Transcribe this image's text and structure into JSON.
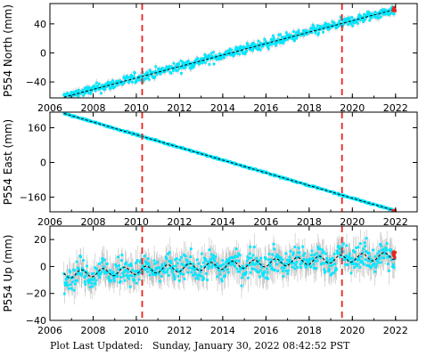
{
  "footer": {
    "label": "Plot Last Updated:",
    "timestamp": "Sunday, January 30, 2022 08:42:52 PST"
  },
  "colors": {
    "data": "#00e6ff",
    "errorbar": "#b0b0b0",
    "model": "#000000",
    "event": "#e8231f",
    "latest": "#e8231f"
  },
  "event_lines_year": [
    2010.27,
    2019.52
  ],
  "chart_data": [
    {
      "type": "scatter",
      "ylabel": "P554 North (mm)",
      "xlim": [
        2006,
        2023
      ],
      "ylim": [
        -62,
        68
      ],
      "xticks": [
        2006,
        2008,
        2010,
        2012,
        2014,
        2016,
        2018,
        2020,
        2022
      ],
      "yticks": [
        -40,
        0,
        40
      ],
      "x_start": 2006.65,
      "x_end": 2021.98,
      "trend": {
        "start": -61,
        "end": 60
      },
      "scatter_mm": 5,
      "errorbar_mm": 4,
      "series": [
        {
          "name": "",
          "x": [
            2006.65,
            2010.0,
            2014.0,
            2018.0,
            2021.98
          ],
          "y": [
            -61,
            -35,
            -3,
            28,
            60
          ]
        }
      ],
      "xtick_labels": [
        "2006",
        "2008",
        "2010",
        "2012",
        "2014",
        "2016",
        "2018",
        "2020",
        "2022"
      ],
      "ytick_labels": [
        "−40",
        "0",
        "40"
      ]
    },
    {
      "type": "scatter",
      "ylabel": "P554 East (mm)",
      "xlim": [
        2006,
        2023
      ],
      "ylim": [
        -228,
        232
      ],
      "xticks": [
        2006,
        2008,
        2010,
        2012,
        2014,
        2016,
        2018,
        2020,
        2022
      ],
      "yticks": [
        -160,
        0,
        160
      ],
      "x_start": 2006.65,
      "x_end": 2021.98,
      "trend": {
        "start": 226,
        "end": -223
      },
      "scatter_mm": 3,
      "errorbar_mm": 3,
      "series": [
        {
          "name": "",
          "x": [
            2006.65,
            2010.0,
            2014.0,
            2018.0,
            2021.98
          ],
          "y": [
            226,
            128,
            10,
            -107,
            -223
          ]
        }
      ],
      "xtick_labels": [
        "2006",
        "2008",
        "2010",
        "2012",
        "2014",
        "2016",
        "2018",
        "2020",
        "2022"
      ],
      "ytick_labels": [
        "−160",
        "0",
        "160"
      ]
    },
    {
      "type": "scatter",
      "ylabel": "P554 Up (mm)",
      "xlim": [
        2006,
        2023
      ],
      "ylim": [
        -40,
        30
      ],
      "xticks": [
        2006,
        2008,
        2010,
        2012,
        2014,
        2016,
        2018,
        2020,
        2022
      ],
      "yticks": [
        -40,
        -20,
        0,
        20
      ],
      "x_start": 2006.65,
      "x_end": 2021.98,
      "trend": {
        "start": -6,
        "end": 8
      },
      "scatter_mm": 7,
      "errorbar_mm": 8,
      "seasonal_mm": 3,
      "series": [
        {
          "name": "",
          "x": [
            2006.65,
            2010.0,
            2014.0,
            2018.0,
            2021.98
          ],
          "y": [
            -6,
            -3,
            0,
            4,
            8
          ]
        }
      ],
      "xtick_labels": [
        "2006",
        "2008",
        "2010",
        "2012",
        "2014",
        "2016",
        "2018",
        "2020",
        "2022"
      ],
      "ytick_labels": [
        "−40",
        "−20",
        "0",
        "20"
      ]
    }
  ]
}
